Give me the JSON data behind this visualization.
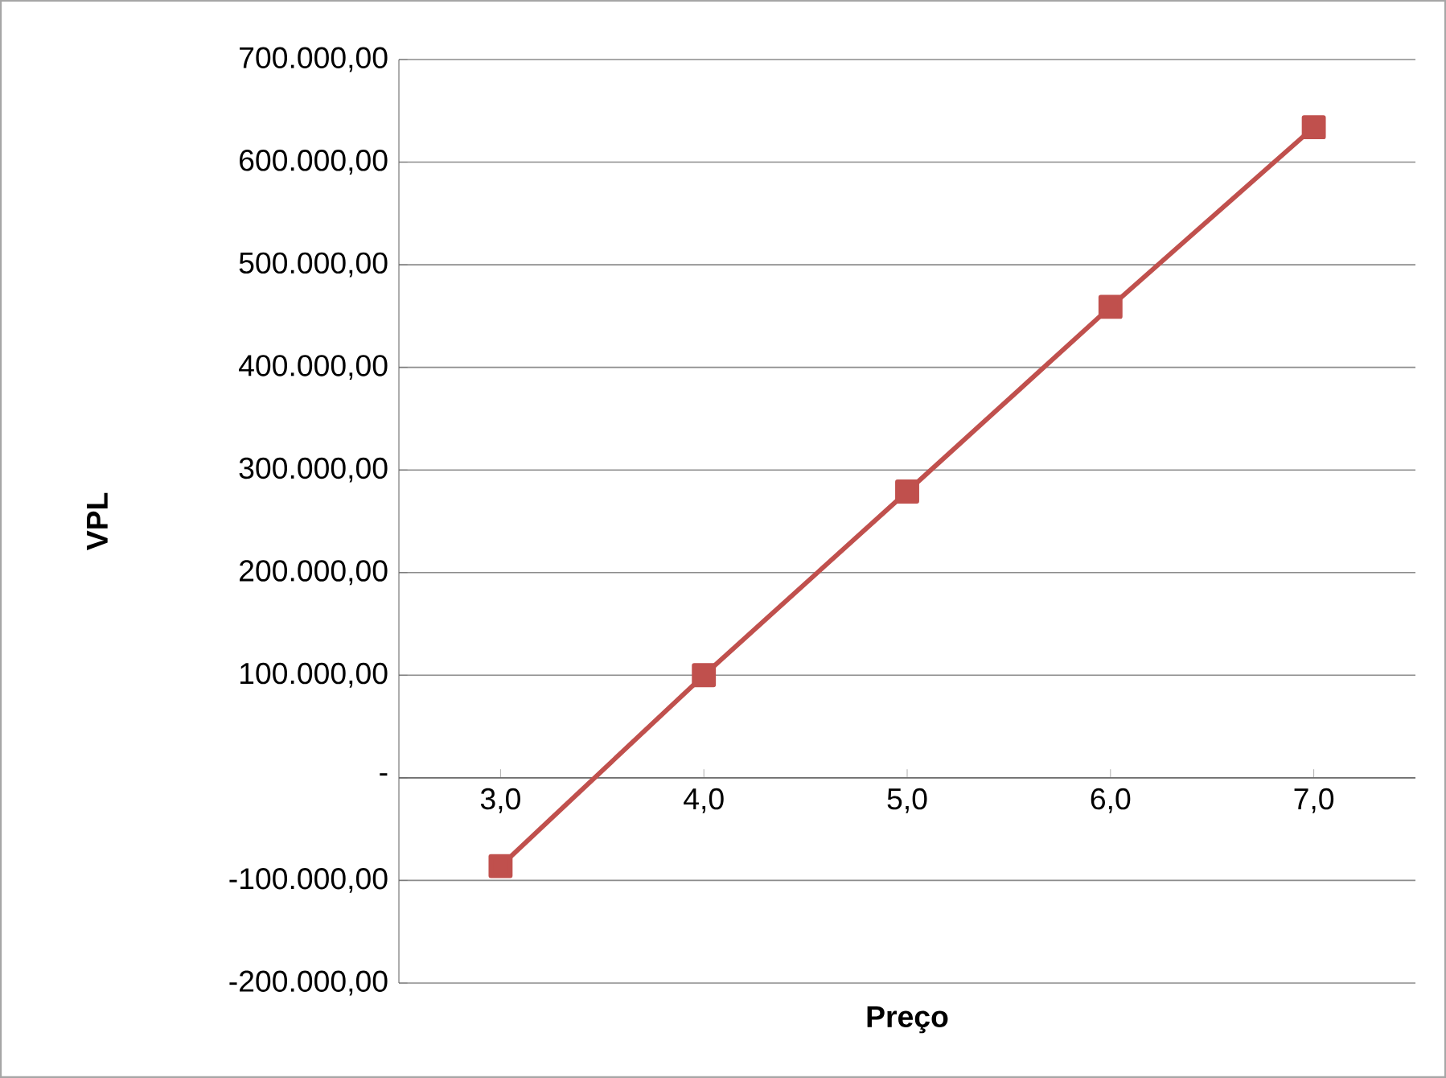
{
  "chart_data": {
    "type": "line",
    "xlabel": "Preço",
    "ylabel": "VPL",
    "categories": [
      "3,0",
      "4,0",
      "5,0",
      "6,0",
      "7,0"
    ],
    "series": [
      {
        "color": "#c0504d",
        "values": [
          -86000,
          100000,
          279000,
          459000,
          634000
        ]
      }
    ],
    "ylim": [
      -200000,
      700000
    ],
    "yticks": [
      {
        "value": -200000,
        "label": "-200.000,00"
      },
      {
        "value": -100000,
        "label": "-100.000,00"
      },
      {
        "value": 0,
        "label": "-"
      },
      {
        "value": 100000,
        "label": "100.000,00"
      },
      {
        "value": 200000,
        "label": "200.000,00"
      },
      {
        "value": 300000,
        "label": "300.000,00"
      },
      {
        "value": 400000,
        "label": "400.000,00"
      },
      {
        "value": 500000,
        "label": "500.000,00"
      },
      {
        "value": 600000,
        "label": "600.000,00"
      },
      {
        "value": 700000,
        "label": "700.000,00"
      }
    ],
    "grid": "y",
    "marker": "square",
    "line_style": "solid"
  }
}
